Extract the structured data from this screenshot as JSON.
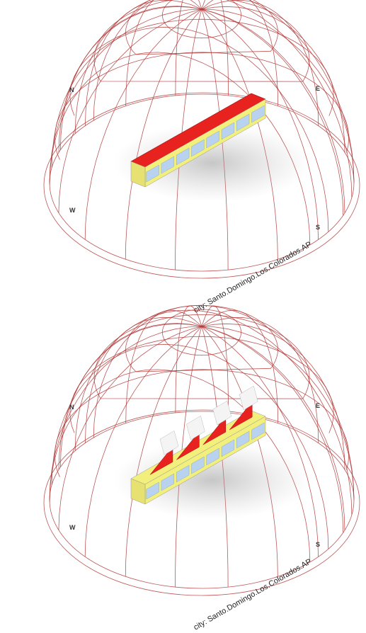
{
  "panels": [
    {
      "labels": {
        "north": "N",
        "west": "W",
        "south": "S",
        "east": "E"
      },
      "caption": "city: Santo.Domingo.Los.Colorados.AP"
    },
    {
      "labels": {
        "north": "N",
        "west": "W",
        "south": "S",
        "east": "E"
      },
      "caption": "city: Santo.Domingo.Los.Colorados.AP"
    }
  ]
}
